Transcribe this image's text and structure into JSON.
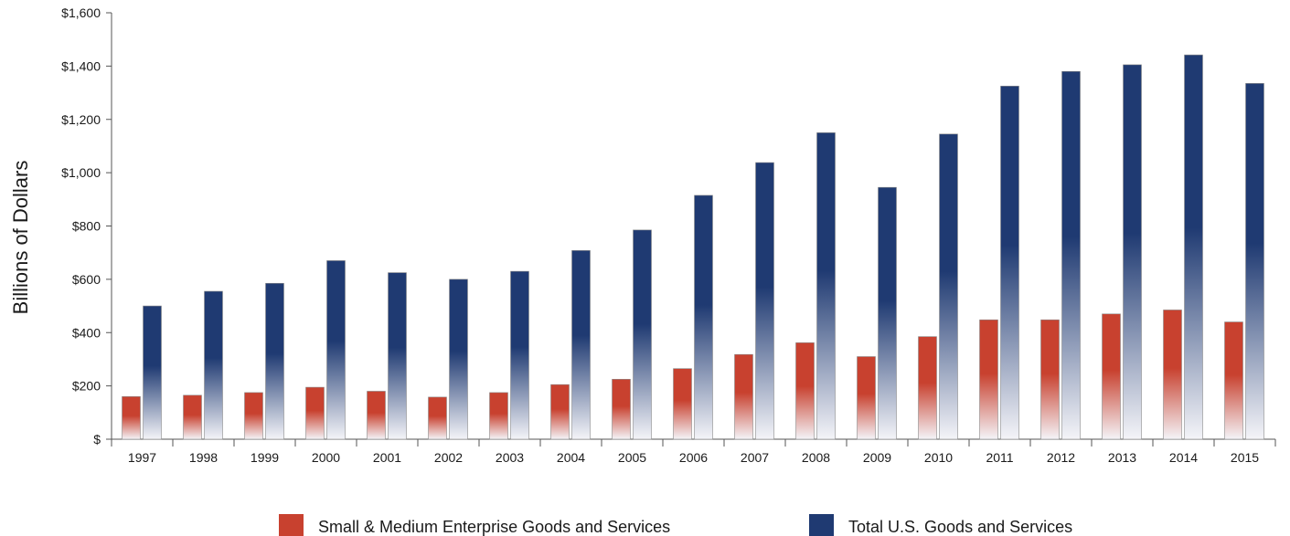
{
  "chart_data": {
    "type": "bar",
    "title": "",
    "xlabel": "",
    "ylabel": "Billions of Dollars",
    "ylim": [
      0,
      1600
    ],
    "y_ticks": [
      {
        "value": 0,
        "label": "$"
      },
      {
        "value": 200,
        "label": "$200"
      },
      {
        "value": 400,
        "label": "$400"
      },
      {
        "value": 600,
        "label": "$600"
      },
      {
        "value": 800,
        "label": "$800"
      },
      {
        "value": 1000,
        "label": "$1,000"
      },
      {
        "value": 1200,
        "label": "$1,200"
      },
      {
        "value": 1400,
        "label": "$1,400"
      },
      {
        "value": 1600,
        "label": "$1,600"
      }
    ],
    "categories": [
      "1997",
      "1998",
      "1999",
      "2000",
      "2001",
      "2002",
      "2003",
      "2004",
      "2005",
      "2006",
      "2007",
      "2008",
      "2009",
      "2010",
      "2011",
      "2012",
      "2013",
      "2014",
      "2015"
    ],
    "series": [
      {
        "name": "Small & Medium Enterprise Goods and Services",
        "color": "#c8412f",
        "values": [
          160,
          165,
          175,
          195,
          180,
          158,
          175,
          205,
          225,
          265,
          318,
          362,
          310,
          385,
          448,
          448,
          470,
          485,
          440
        ]
      },
      {
        "name": "Total U.S. Goods and Services",
        "color": "#1f3a72",
        "values": [
          500,
          555,
          585,
          670,
          625,
          600,
          630,
          708,
          785,
          915,
          1038,
          1150,
          945,
          1145,
          1325,
          1380,
          1405,
          1442,
          1335
        ]
      }
    ],
    "grid": false,
    "legend_position": "bottom"
  }
}
